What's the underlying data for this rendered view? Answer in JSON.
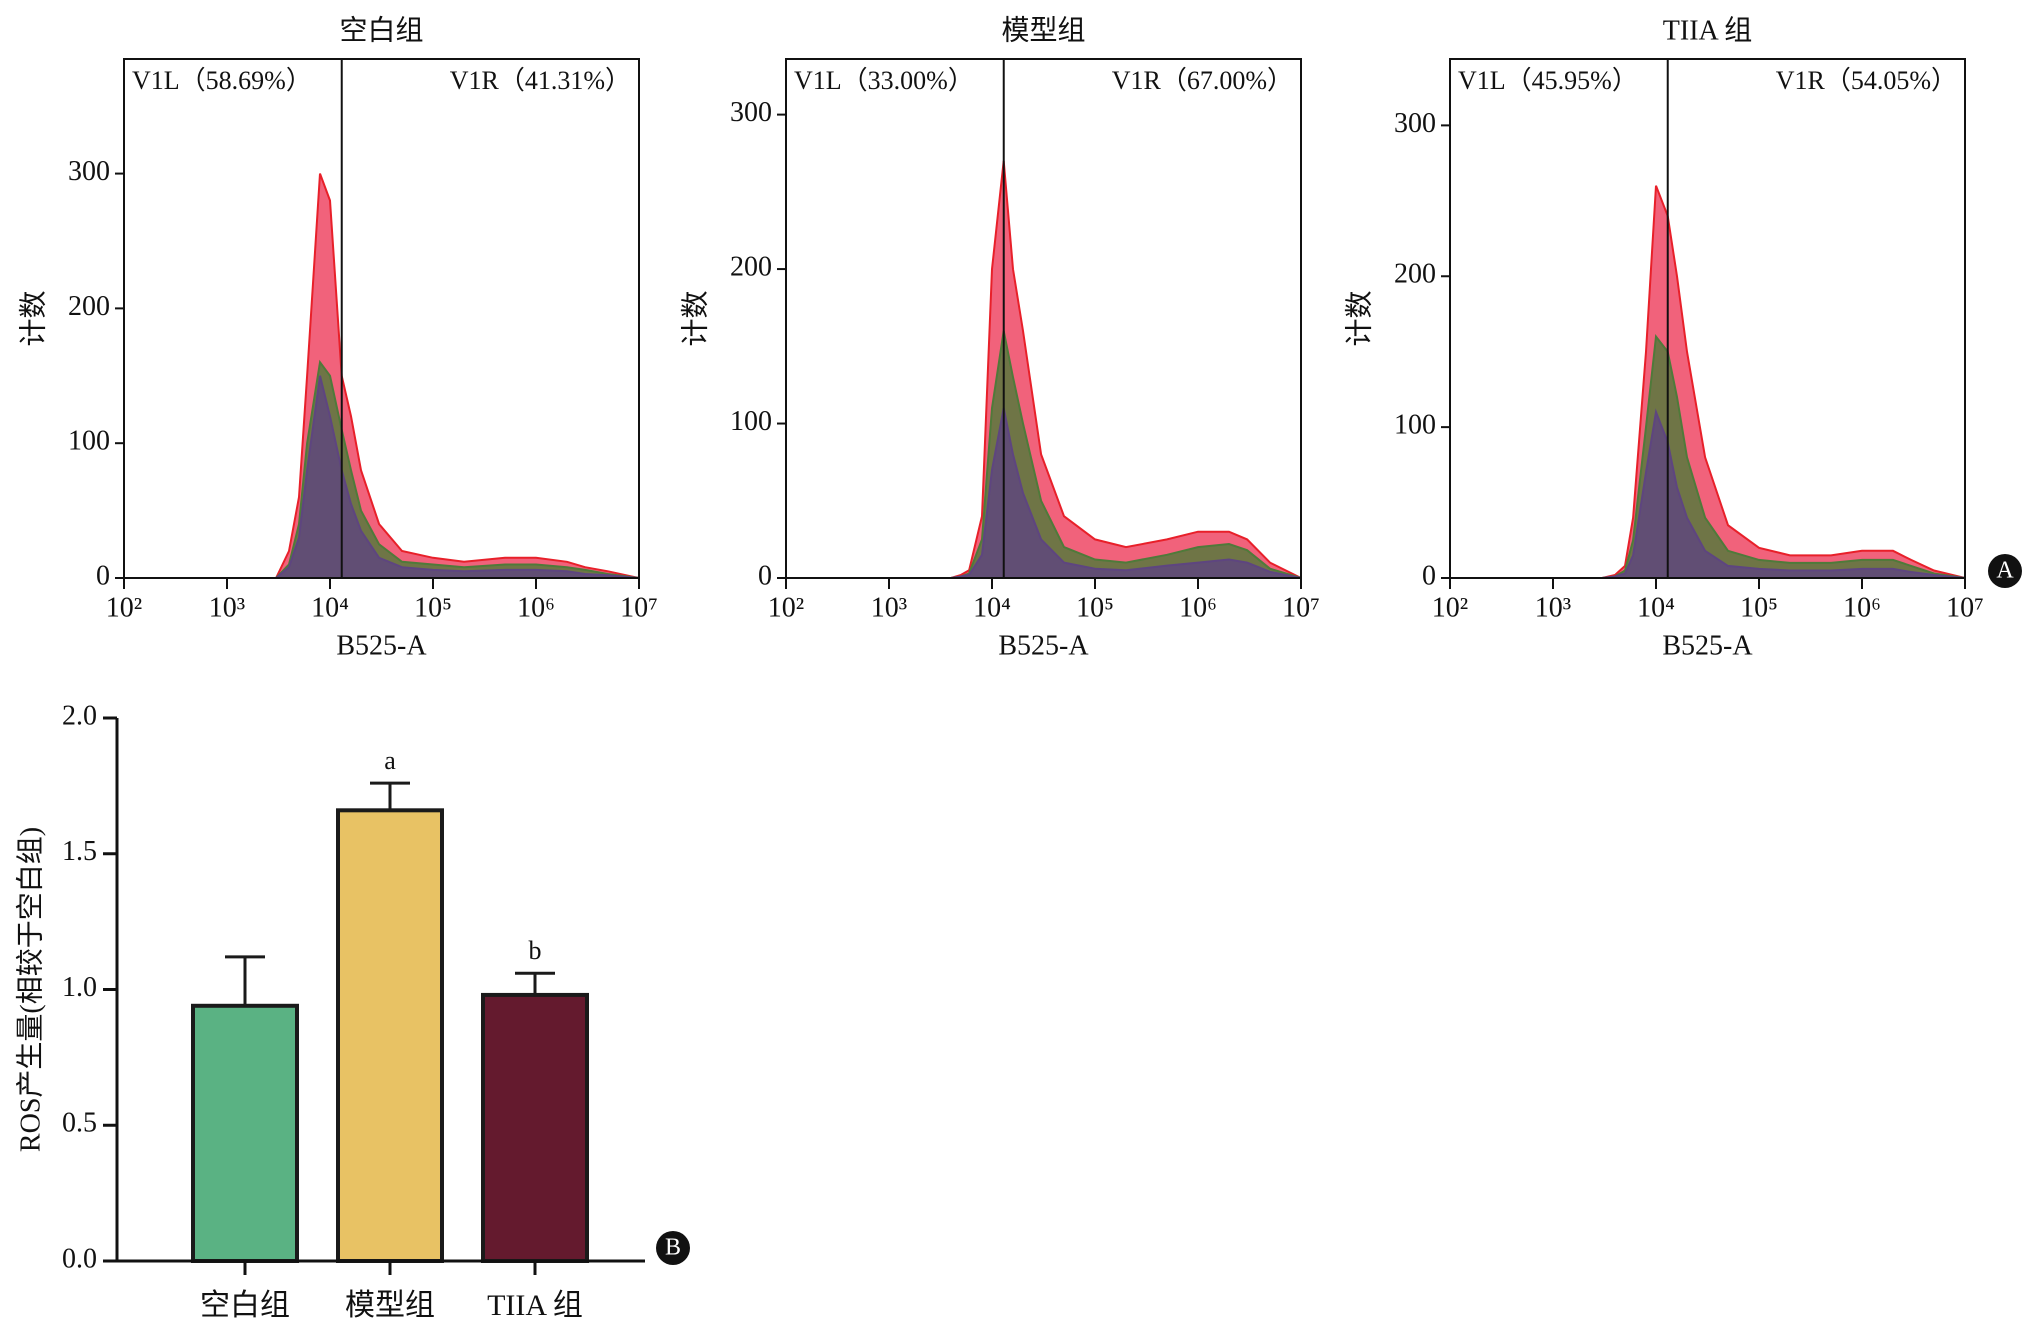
{
  "chart_data": [
    {
      "type": "histogram-overlay",
      "title": "空白组",
      "xlabel": "B525-A",
      "ylabel": "计数",
      "xscale": "log",
      "xlim": [
        100,
        10000000
      ],
      "xticks": [
        {
          "value": 100,
          "label": "10²"
        },
        {
          "value": 1000,
          "label": "10³"
        },
        {
          "value": 10000,
          "label": "10⁴"
        },
        {
          "value": 100000,
          "label": "10⁵"
        },
        {
          "value": 1000000,
          "label": "10⁶"
        },
        {
          "value": 10000000,
          "label": "10⁷"
        }
      ],
      "ylim": [
        0,
        385
      ],
      "yticks": [
        0,
        100,
        200,
        300
      ],
      "gate": 13000,
      "gate_labels": [
        "V1L（58.69%）",
        "V1R（41.31%）"
      ],
      "x": [
        2000,
        3000,
        4000,
        5000,
        6000,
        8000,
        10000,
        13000,
        16000,
        20000,
        30000,
        50000,
        100000,
        200000,
        500000,
        1000000,
        2000000,
        3000000,
        5000000,
        10000000
      ],
      "series": [
        {
          "color": "#f05a74",
          "values": [
            0,
            0,
            20,
            60,
            150,
            300,
            280,
            150,
            120,
            80,
            40,
            20,
            15,
            12,
            15,
            15,
            12,
            8,
            5,
            0
          ]
        },
        {
          "color": "#4f7a3a",
          "values": [
            0,
            0,
            10,
            40,
            100,
            160,
            150,
            110,
            80,
            50,
            25,
            12,
            10,
            8,
            10,
            10,
            8,
            6,
            3,
            0
          ]
        },
        {
          "color": "#5e4580",
          "values": [
            0,
            0,
            8,
            30,
            80,
            150,
            120,
            80,
            55,
            35,
            15,
            8,
            6,
            5,
            6,
            6,
            5,
            3,
            2,
            0
          ]
        }
      ]
    },
    {
      "type": "histogram-overlay",
      "title": "模型组",
      "xlabel": "B525-A",
      "ylabel": "计数",
      "xscale": "log",
      "xlim": [
        100,
        10000000
      ],
      "xticks": [
        {
          "value": 100,
          "label": "10²"
        },
        {
          "value": 1000,
          "label": "10³"
        },
        {
          "value": 10000,
          "label": "10⁴"
        },
        {
          "value": 100000,
          "label": "10⁵"
        },
        {
          "value": 1000000,
          "label": "10⁶"
        },
        {
          "value": 10000000,
          "label": "10⁷"
        }
      ],
      "ylim": [
        0,
        336
      ],
      "yticks": [
        0,
        100,
        200,
        300
      ],
      "gate": 13000,
      "gate_labels": [
        "V1L（33.00%）",
        "V1R（67.00%）"
      ],
      "x": [
        2000,
        3000,
        4000,
        5000,
        6000,
        8000,
        10000,
        13000,
        16000,
        20000,
        30000,
        50000,
        100000,
        200000,
        500000,
        1000000,
        2000000,
        3000000,
        5000000,
        10000000
      ],
      "series": [
        {
          "color": "#f05a74",
          "values": [
            0,
            0,
            0,
            2,
            5,
            40,
            200,
            270,
            200,
            160,
            80,
            40,
            25,
            20,
            25,
            30,
            30,
            25,
            10,
            0
          ]
        },
        {
          "color": "#4f7a3a",
          "values": [
            0,
            0,
            0,
            1,
            3,
            25,
            110,
            160,
            130,
            100,
            50,
            20,
            12,
            10,
            15,
            20,
            22,
            18,
            6,
            0
          ]
        },
        {
          "color": "#5e4580",
          "values": [
            0,
            0,
            0,
            1,
            2,
            15,
            70,
            110,
            80,
            55,
            25,
            10,
            6,
            5,
            8,
            10,
            12,
            10,
            4,
            0
          ]
        }
      ]
    },
    {
      "type": "histogram-overlay",
      "title": "TIIA 组",
      "xlabel": "B525-A",
      "ylabel": "计数",
      "xscale": "log",
      "xlim": [
        100,
        10000000
      ],
      "xticks": [
        {
          "value": 100,
          "label": "10²"
        },
        {
          "value": 1000,
          "label": "10³"
        },
        {
          "value": 10000,
          "label": "10⁴"
        },
        {
          "value": 100000,
          "label": "10⁵"
        },
        {
          "value": 1000000,
          "label": "10⁶"
        },
        {
          "value": 10000000,
          "label": "10⁷"
        }
      ],
      "ylim": [
        0,
        344
      ],
      "yticks": [
        0,
        100,
        200,
        300
      ],
      "gate": 13000,
      "gate_labels": [
        "V1L（45.95%）",
        "V1R（54.05%）"
      ],
      "panel_label": "A",
      "x": [
        2000,
        3000,
        4000,
        5000,
        6000,
        8000,
        10000,
        13000,
        16000,
        20000,
        30000,
        50000,
        100000,
        200000,
        500000,
        1000000,
        2000000,
        3000000,
        5000000,
        10000000
      ],
      "series": [
        {
          "color": "#f05a74",
          "values": [
            0,
            0,
            2,
            8,
            40,
            150,
            260,
            240,
            200,
            150,
            80,
            35,
            20,
            15,
            15,
            18,
            18,
            12,
            5,
            0
          ]
        },
        {
          "color": "#4f7a3a",
          "values": [
            0,
            0,
            1,
            5,
            25,
            100,
            160,
            150,
            120,
            80,
            40,
            18,
            12,
            10,
            10,
            12,
            12,
            8,
            3,
            0
          ]
        },
        {
          "color": "#5e4580",
          "values": [
            0,
            0,
            1,
            3,
            15,
            70,
            110,
            90,
            60,
            40,
            18,
            8,
            6,
            5,
            5,
            6,
            6,
            4,
            2,
            0
          ]
        }
      ]
    },
    {
      "type": "bar",
      "ylabel": "ROS产生量(相较于空白组)",
      "panel_label": "B",
      "categories": [
        "空白组",
        "模型组",
        "TIIA 组"
      ],
      "values": [
        0.94,
        1.66,
        0.98
      ],
      "errors": [
        0.18,
        0.1,
        0.08
      ],
      "colors": [
        "#5ab283",
        "#e8c264",
        "#641a2e"
      ],
      "significance": [
        null,
        "a",
        "b"
      ],
      "ylim": [
        0,
        2
      ],
      "yticks": [
        {
          "value": 0,
          "label": "0.0"
        },
        {
          "value": 0.5,
          "label": "0.5"
        },
        {
          "value": 1,
          "label": "1.0"
        },
        {
          "value": 1.5,
          "label": "1.5"
        },
        {
          "value": 2,
          "label": "2.0"
        }
      ]
    }
  ]
}
